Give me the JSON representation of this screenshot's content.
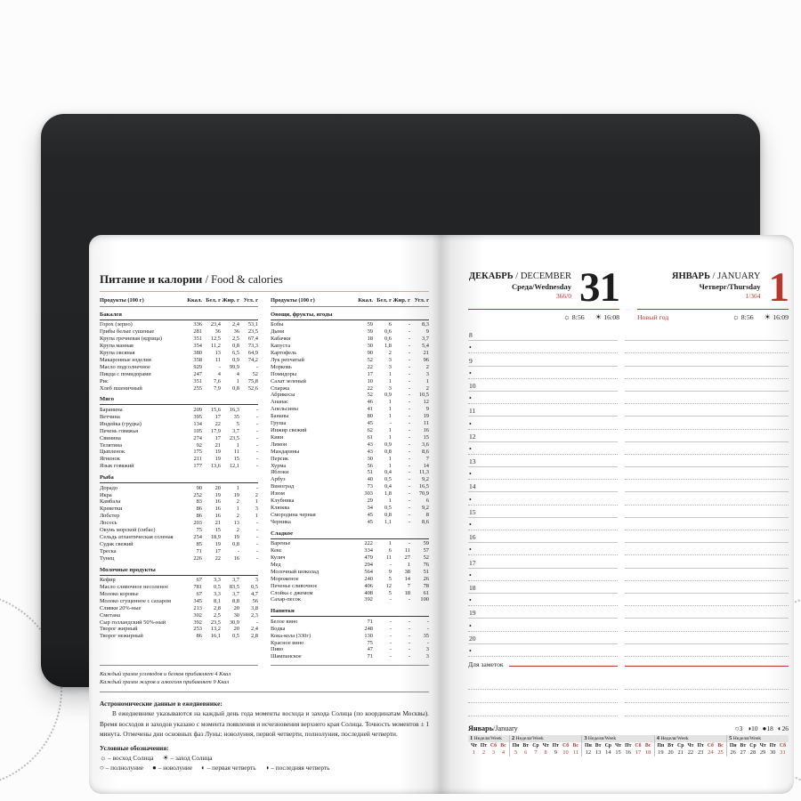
{
  "colors": {
    "accent_red": "#b5382d",
    "salmon_rule": "#dca49a",
    "cover": "#232527",
    "line_gray": "#c6c6c6"
  },
  "left_page": {
    "title_ru": "Питание и калории",
    "title_en": "/ Food & calories",
    "table_header": {
      "product": "Продукты (100 г)",
      "kcal": "Ккал.",
      "protein": "Бел. г",
      "fat": "Жир. г",
      "carbs": "Угл. г"
    },
    "col1_sections": [
      {
        "name": "Бакалея",
        "rows": [
          [
            "Горох (зерно)",
            "336",
            "23,4",
            "2,4",
            "53,1"
          ],
          [
            "Грибы белые сушеные",
            "281",
            "36",
            "36",
            "23,5"
          ],
          [
            "Крупа гречневая (ядрица)",
            "351",
            "12,5",
            "2,5",
            "67,4"
          ],
          [
            "Крупа манная",
            "354",
            "11,2",
            "0,8",
            "73,3"
          ],
          [
            "Крупа овсяная",
            "380",
            "13",
            "6,5",
            "64,9"
          ],
          [
            "Макаронные изделия",
            "358",
            "11",
            "0,9",
            "74,2"
          ],
          [
            "Масло подсолнечное",
            "929",
            "-",
            "99,9",
            "-"
          ],
          [
            "Пицца с помидорами",
            "247",
            "4",
            "4",
            "52"
          ],
          [
            "Рис",
            "351",
            "7,6",
            "1",
            "75,8"
          ],
          [
            "Хлеб пшеничный",
            "255",
            "7,9",
            "0,8",
            "52,6"
          ]
        ]
      },
      {
        "name": "Мясо",
        "rows": [
          [
            "Баранина",
            "209",
            "15,6",
            "16,3",
            "-"
          ],
          [
            "Ветчина",
            "395",
            "17",
            "35",
            "-"
          ],
          [
            "Индейка (грудка)",
            "134",
            "22",
            "5",
            "-"
          ],
          [
            "Печень говяжья",
            "105",
            "17,9",
            "3,7",
            "-"
          ],
          [
            "Свинина",
            "274",
            "17",
            "23,5",
            "-"
          ],
          [
            "Телятина",
            "92",
            "21",
            "1",
            "-"
          ],
          [
            "Цыпленок",
            "175",
            "19",
            "11",
            "-"
          ],
          [
            "Ягненок",
            "211",
            "19",
            "15",
            "-"
          ],
          [
            "Язык говяжий",
            "177",
            "13,6",
            "12,1",
            "-"
          ]
        ]
      },
      {
        "name": "Рыба",
        "rows": [
          [
            "Дорадо",
            "90",
            "20",
            "1",
            "-"
          ],
          [
            "Икра",
            "252",
            "19",
            "19",
            "2"
          ],
          [
            "Камбала",
            "83",
            "16",
            "2",
            "1"
          ],
          [
            "Креветки",
            "86",
            "16",
            "1",
            "3"
          ],
          [
            "Лобстер",
            "86",
            "16",
            "2",
            "1"
          ],
          [
            "Лосось",
            "203",
            "21",
            "13",
            "-"
          ],
          [
            "Окунь морской (сибас)",
            "75",
            "15",
            "2",
            "-"
          ],
          [
            "Сельдь атлантическая соленая",
            "254",
            "18,9",
            "19",
            "-"
          ],
          [
            "Судак свежий",
            "85",
            "19",
            "0,8",
            "-"
          ],
          [
            "Треска",
            "71",
            "17",
            "-",
            "-"
          ],
          [
            "Тунец",
            "226",
            "22",
            "16",
            "-"
          ]
        ]
      },
      {
        "name": "Молочные продукты",
        "rows": [
          [
            "Кефир",
            "67",
            "3,3",
            "3,7",
            "3"
          ],
          [
            "Масло сливочное несоленое",
            "781",
            "0,5",
            "83,5",
            "0,5"
          ],
          [
            "Молоко коровье",
            "67",
            "3,3",
            "3,7",
            "4,7"
          ],
          [
            "Молоко сгущенное с сахаром",
            "345",
            "8,1",
            "8,8",
            "56"
          ],
          [
            "Сливки 20%-ные",
            "213",
            "2,8",
            "20",
            "3,8"
          ],
          [
            "Сметана",
            "302",
            "2,5",
            "30",
            "2,3"
          ],
          [
            "Сыр голландский 50%-ный",
            "392",
            "23,5",
            "30,9",
            "-"
          ],
          [
            "Творог жирный",
            "253",
            "13,2",
            "20",
            "2,4"
          ],
          [
            "Творог нежирный",
            "86",
            "16,1",
            "0,5",
            "2,8"
          ]
        ]
      }
    ],
    "col2_sections": [
      {
        "name": "Овощи, фрукты, ягоды",
        "rows": [
          [
            "Бобы",
            "59",
            "6",
            "-",
            "8,3"
          ],
          [
            "Дыня",
            "39",
            "0,6",
            "-",
            "9"
          ],
          [
            "Кабачки",
            "18",
            "0,6",
            "-",
            "3,7"
          ],
          [
            "Капуста",
            "30",
            "1,8",
            "-",
            "5,4"
          ],
          [
            "Картофель",
            "90",
            "2",
            "-",
            "21"
          ],
          [
            "Лук репчатый",
            "52",
            "3",
            "-",
            "96"
          ],
          [
            "Морковь",
            "22",
            "3",
            "-",
            "2"
          ],
          [
            "Помидоры",
            "17",
            "1",
            "-",
            "3"
          ],
          [
            "Салат зеленый",
            "10",
            "1",
            "-",
            "1"
          ],
          [
            "Спаржа",
            "22",
            "3",
            "-",
            "2"
          ],
          [
            "Абрикосы",
            "52",
            "0,9",
            "-",
            "10,5"
          ],
          [
            "Ананас",
            "46",
            "1",
            "-",
            "12"
          ],
          [
            "Апельсины",
            "41",
            "1",
            "-",
            "9"
          ],
          [
            "Бананы",
            "80",
            "1",
            "-",
            "19"
          ],
          [
            "Груша",
            "45",
            "-",
            "-",
            "11"
          ],
          [
            "Инжир свежий",
            "62",
            "1",
            "-",
            "16"
          ],
          [
            "Киви",
            "61",
            "1",
            "-",
            "15"
          ],
          [
            "Лимон",
            "43",
            "0,9",
            "-",
            "3,6"
          ],
          [
            "Мандарины",
            "43",
            "0,8",
            "-",
            "8,6"
          ],
          [
            "Персик",
            "30",
            "1",
            "-",
            "7"
          ],
          [
            "Хурма",
            "56",
            "1",
            "-",
            "14"
          ],
          [
            "Яблоки",
            "51",
            "0,4",
            "-",
            "11,3"
          ],
          [
            "Арбуз",
            "40",
            "0,5",
            "-",
            "9,2"
          ],
          [
            "Виноград",
            "73",
            "0,4",
            "-",
            "16,5"
          ],
          [
            "Изюм",
            "303",
            "1,8",
            "-",
            "70,9"
          ],
          [
            "Клубника",
            "29",
            "1",
            "-",
            "6"
          ],
          [
            "Клюква",
            "34",
            "0,5",
            "-",
            "9,2"
          ],
          [
            "Смородина черная",
            "45",
            "0,8",
            "-",
            "8"
          ],
          [
            "Черника",
            "45",
            "1,1",
            "-",
            "8,6"
          ]
        ]
      },
      {
        "name": "Сладкое",
        "rows": [
          [
            "Варенье",
            "222",
            "1",
            "-",
            "59"
          ],
          [
            "Кекс",
            "334",
            "6",
            "11",
            "57"
          ],
          [
            "Кулич",
            "479",
            "11",
            "27",
            "52"
          ],
          [
            "Мед",
            "294",
            "-",
            "1",
            "76"
          ],
          [
            "Молочный шоколад",
            "564",
            "9",
            "38",
            "51"
          ],
          [
            "Мороженое",
            "240",
            "5",
            "14",
            "26"
          ],
          [
            "Печенье сливочное",
            "406",
            "12",
            "7",
            "78"
          ],
          [
            "Слойка с джемом",
            "408",
            "5",
            "18",
            "61"
          ],
          [
            "Сахар-песок",
            "392",
            "-",
            "-",
            "100"
          ]
        ]
      },
      {
        "name": "Напитки",
        "rows": [
          [
            "Белое вино",
            "71",
            "-",
            "-",
            "-"
          ],
          [
            "Водка",
            "248",
            "-",
            "-",
            "-"
          ],
          [
            "Кока-кола (330г)",
            "130",
            "-",
            "-",
            "35"
          ],
          [
            "Красное вино",
            "75",
            "-",
            "-",
            "-"
          ],
          [
            "Пиво",
            "47",
            "-",
            "-",
            "3"
          ],
          [
            "Шампанское",
            "71",
            "-",
            "-",
            "3"
          ]
        ]
      }
    ],
    "footnotes": [
      "Каждый грамм углеводов и белков прибавляет 4 Ккал",
      "Каждый грамм жиров и алкоголя прибавляет 9 Ккал"
    ],
    "astro_title": "Астрономические данные в ежедневнике:",
    "astro_text": "В ежедневнике указываются на каждый день года моменты восхода и захода Солнца (по координатам Москвы). Время восходов и заходов указано с момента появления и исчезновения верхнего края Солнца. Точность моментов ± 1 минута. Отмечены дни основных фаз Луны: новолуния, первой четверти, полнолуния, последней четверти.",
    "legend_title": "Условные обозначения:",
    "legend_sun": [
      [
        "sunrise",
        "– восход Солнца"
      ],
      [
        "sunset",
        "– заход Солнца"
      ]
    ],
    "legend_moon": [
      [
        "full-moon",
        "– полнолуние"
      ],
      [
        "new-moon",
        "– новолуние"
      ],
      [
        "first-quarter",
        "– первая четверть"
      ],
      [
        "last-quarter",
        "– последняя четверть"
      ]
    ]
  },
  "right_page": {
    "december": {
      "month_ru": "ДЕКАБРЬ",
      "month_en": "/ DECEMBER",
      "weekday": "Среда/Wednesday",
      "day_counter": "366/0",
      "big_day": "31",
      "sunrise": "8:56",
      "sunset": "16:08",
      "holiday": ""
    },
    "january": {
      "month_ru": "ЯНВАРЬ",
      "month_en": "/ JANUARY",
      "weekday": "Четверг/Thursday",
      "day_counter": "1/364",
      "big_day": "1",
      "sunrise": "8:56",
      "sunset": "16:09",
      "holiday": "Новый год"
    },
    "hours": [
      "8",
      "9",
      "10",
      "11",
      "12",
      "13",
      "14",
      "15",
      "16",
      "17",
      "18",
      "19",
      "20"
    ],
    "notes_label": "Для заметок",
    "calendar": {
      "title_ru": "Январь",
      "title_en": "/January",
      "week_word": "Неделя/Week",
      "moon_phases": [
        [
          "full-moon",
          "3"
        ],
        [
          "last-quarter",
          "10"
        ],
        [
          "new-moon",
          "18"
        ],
        [
          "first-quarter",
          "26"
        ]
      ],
      "weeks": [
        {
          "num": "1",
          "dows": [
            [
              "Чт",
              0
            ],
            [
              "Пт",
              0
            ],
            [
              "Сб",
              1
            ],
            [
              "Вс",
              1
            ]
          ],
          "dates": [
            [
              "1",
              1
            ],
            [
              "2",
              1
            ],
            [
              "3",
              1
            ],
            [
              "4",
              1
            ]
          ]
        },
        {
          "num": "2",
          "dows": [
            [
              "Пн",
              0
            ],
            [
              "Вт",
              0
            ],
            [
              "Ср",
              0
            ],
            [
              "Чт",
              0
            ],
            [
              "Пт",
              0
            ],
            [
              "Сб",
              1
            ],
            [
              "Вс",
              1
            ]
          ],
          "dates": [
            [
              "5",
              1
            ],
            [
              "6",
              1
            ],
            [
              "7",
              1
            ],
            [
              "8",
              1
            ],
            [
              "9",
              0
            ],
            [
              "10",
              1
            ],
            [
              "11",
              1
            ]
          ]
        },
        {
          "num": "3",
          "dows": [
            [
              "Пн",
              0
            ],
            [
              "Вт",
              0
            ],
            [
              "Ср",
              0
            ],
            [
              "Чт",
              0
            ],
            [
              "Пт",
              0
            ],
            [
              "Сб",
              1
            ],
            [
              "Вс",
              1
            ]
          ],
          "dates": [
            [
              "12",
              0
            ],
            [
              "13",
              0
            ],
            [
              "14",
              0
            ],
            [
              "15",
              0
            ],
            [
              "16",
              0
            ],
            [
              "17",
              1
            ],
            [
              "18",
              1
            ]
          ]
        },
        {
          "num": "4",
          "dows": [
            [
              "Пн",
              0
            ],
            [
              "Вт",
              0
            ],
            [
              "Ср",
              0
            ],
            [
              "Чт",
              0
            ],
            [
              "Пт",
              0
            ],
            [
              "Сб",
              1
            ],
            [
              "Вс",
              1
            ]
          ],
          "dates": [
            [
              "19",
              0
            ],
            [
              "20",
              0
            ],
            [
              "21",
              0
            ],
            [
              "22",
              0
            ],
            [
              "23",
              0
            ],
            [
              "24",
              1
            ],
            [
              "25",
              1
            ]
          ]
        },
        {
          "num": "5",
          "dows": [
            [
              "Пн",
              0
            ],
            [
              "Вт",
              0
            ],
            [
              "Ср",
              0
            ],
            [
              "Чт",
              0
            ],
            [
              "Пт",
              0
            ],
            [
              "Сб",
              1
            ]
          ],
          "dates": [
            [
              "26",
              0
            ],
            [
              "27",
              0
            ],
            [
              "28",
              0
            ],
            [
              "29",
              0
            ],
            [
              "30",
              0
            ],
            [
              "31",
              1
            ]
          ]
        }
      ]
    }
  }
}
